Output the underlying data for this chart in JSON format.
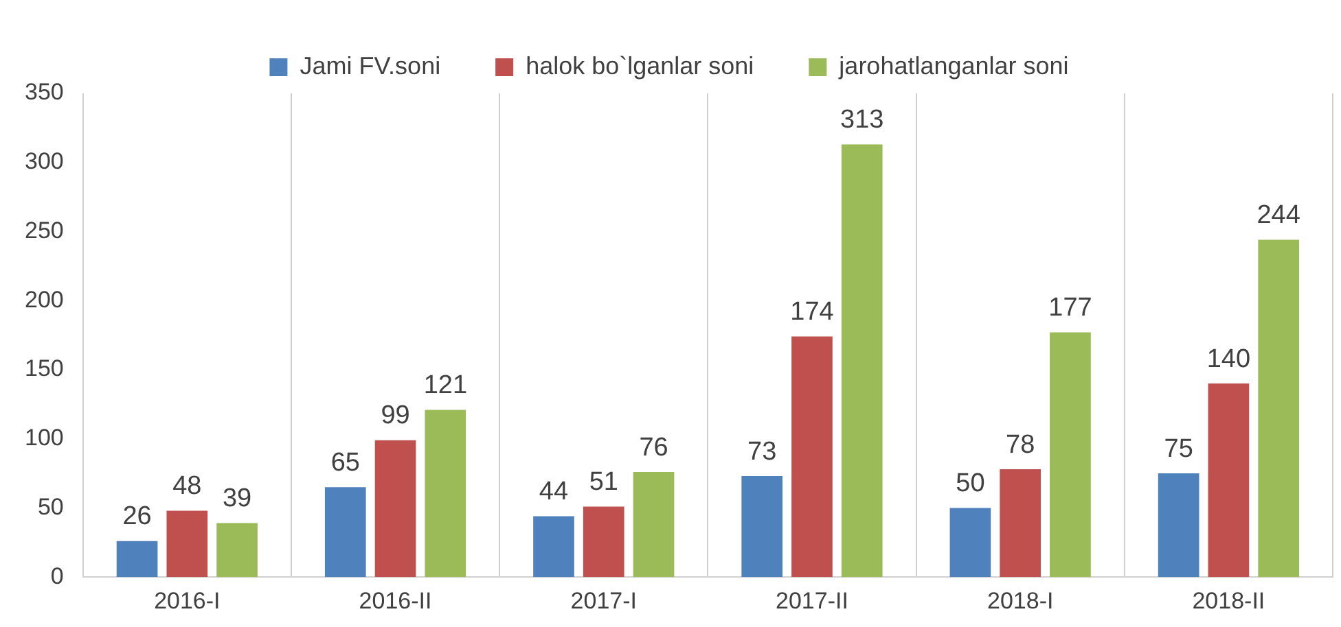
{
  "chart_data": {
    "type": "bar",
    "categories": [
      "2016-I",
      "2016-II",
      "2017-I",
      "2017-II",
      "2018-I",
      "2018-II"
    ],
    "series": [
      {
        "name": "Jami FV.soni",
        "color": "#4f81bd",
        "values": [
          26,
          65,
          44,
          73,
          50,
          75
        ]
      },
      {
        "name": "halok bo`lganlar soni",
        "color": "#c0504d",
        "values": [
          48,
          99,
          51,
          174,
          78,
          140
        ]
      },
      {
        "name": "jarohatlanganlar soni",
        "color": "#9bbb59",
        "values": [
          39,
          121,
          76,
          313,
          177,
          244
        ]
      }
    ],
    "ylim": [
      0,
      350
    ],
    "yticks": [
      0,
      50,
      100,
      150,
      200,
      250,
      300,
      350
    ],
    "grid": "x",
    "legend": "top",
    "data_labels": true
  }
}
